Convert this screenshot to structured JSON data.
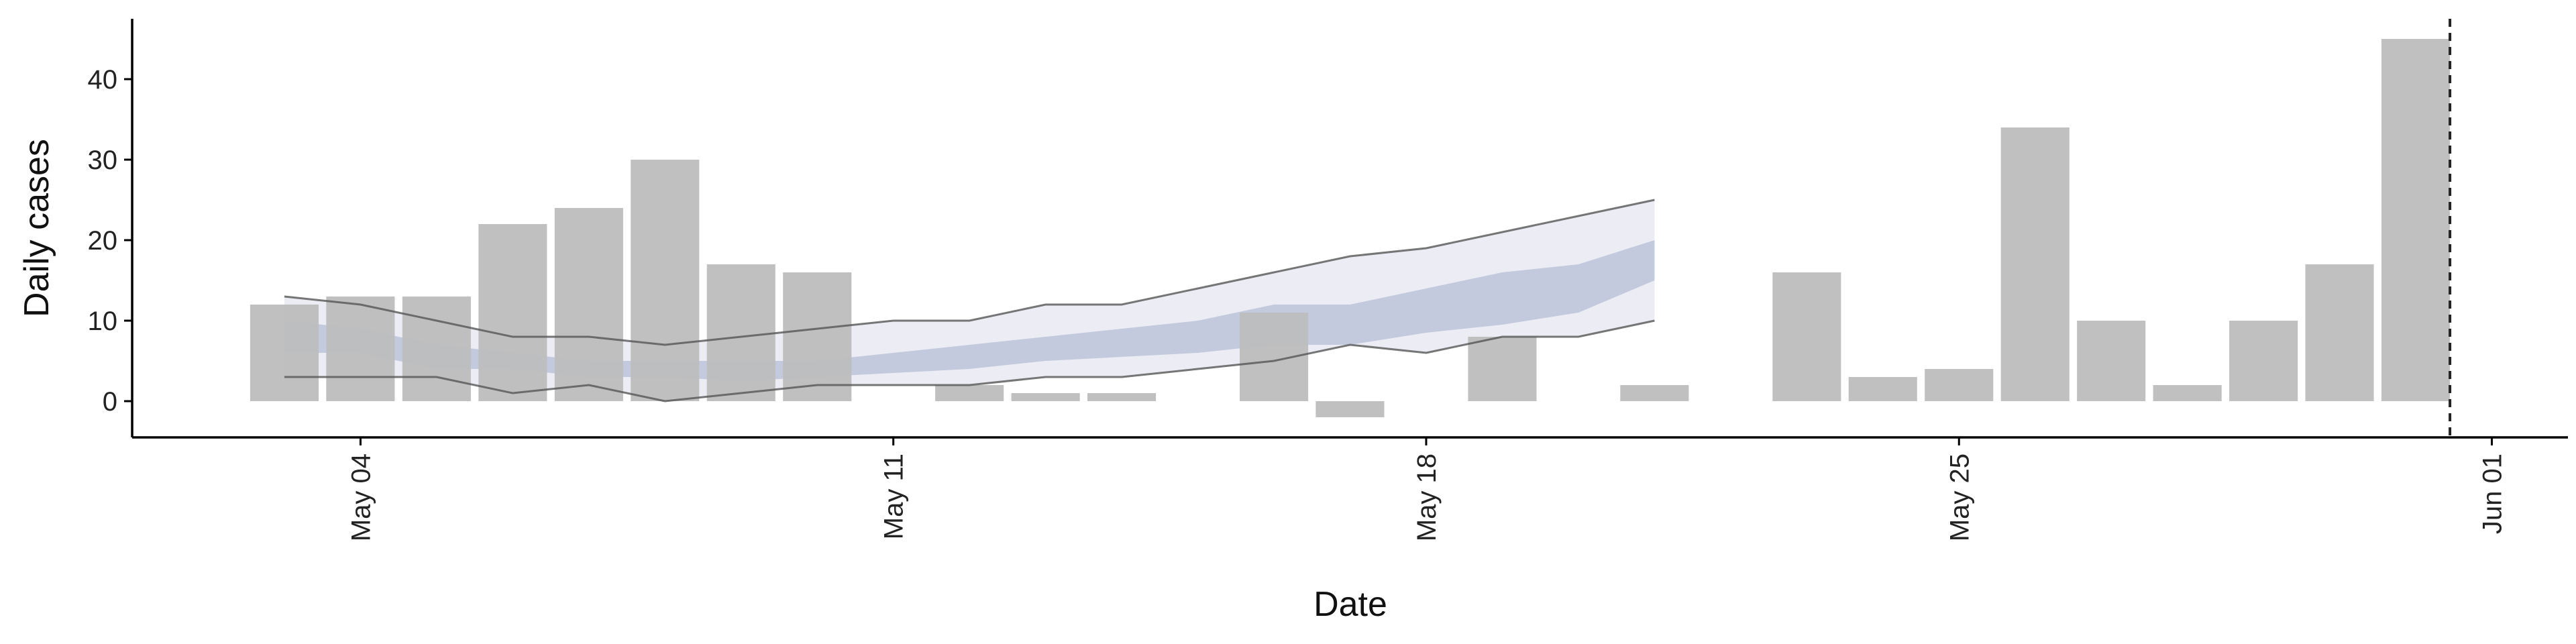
{
  "chart_data": {
    "type": "bar",
    "title": "",
    "xlabel": "Date",
    "ylabel": "Daily cases",
    "ylim": [
      -4.5,
      47.5
    ],
    "xlim": [
      "2021-05-01",
      "2021-06-02"
    ],
    "x_ticks": [
      {
        "date": "2021-05-04",
        "label": "May 04"
      },
      {
        "date": "2021-05-11",
        "label": "May 11"
      },
      {
        "date": "2021-05-18",
        "label": "May 18"
      },
      {
        "date": "2021-05-25",
        "label": "May 25"
      },
      {
        "date": "2021-06-01",
        "label": "Jun 01"
      }
    ],
    "y_ticks": [
      0,
      10,
      20,
      30,
      40
    ],
    "grid": false,
    "legend": "none",
    "bars": {
      "name": "Daily cases",
      "color": "#bdbdbd",
      "points": [
        {
          "date": "2021-05-03",
          "value": 12
        },
        {
          "date": "2021-05-04",
          "value": 13
        },
        {
          "date": "2021-05-05",
          "value": 13
        },
        {
          "date": "2021-05-06",
          "value": 22
        },
        {
          "date": "2021-05-07",
          "value": 24
        },
        {
          "date": "2021-05-08",
          "value": 30
        },
        {
          "date": "2021-05-09",
          "value": 17
        },
        {
          "date": "2021-05-10",
          "value": 16
        },
        {
          "date": "2021-05-12",
          "value": 2
        },
        {
          "date": "2021-05-13",
          "value": 1
        },
        {
          "date": "2021-05-14",
          "value": 1
        },
        {
          "date": "2021-05-16",
          "value": 11
        },
        {
          "date": "2021-05-17",
          "value": -2
        },
        {
          "date": "2021-05-19",
          "value": 8
        },
        {
          "date": "2021-05-21",
          "value": 2
        },
        {
          "date": "2021-05-23",
          "value": 16
        },
        {
          "date": "2021-05-24",
          "value": 3
        },
        {
          "date": "2021-05-25",
          "value": 4
        },
        {
          "date": "2021-05-26",
          "value": 34
        },
        {
          "date": "2021-05-27",
          "value": 10
        },
        {
          "date": "2021-05-28",
          "value": 2
        },
        {
          "date": "2021-05-29",
          "value": 10
        },
        {
          "date": "2021-05-30",
          "value": 17
        },
        {
          "date": "2021-05-31",
          "value": 45
        }
      ]
    },
    "bands": {
      "dates": [
        "2021-05-03",
        "2021-05-04",
        "2021-05-05",
        "2021-05-06",
        "2021-05-07",
        "2021-05-08",
        "2021-05-09",
        "2021-05-10",
        "2021-05-11",
        "2021-05-12",
        "2021-05-13",
        "2021-05-14",
        "2021-05-15",
        "2021-05-16",
        "2021-05-17",
        "2021-05-18",
        "2021-05-19",
        "2021-05-20",
        "2021-05-21"
      ],
      "outer": {
        "color": "#dfe1ec",
        "lower": [
          3,
          3,
          3,
          1,
          2,
          0,
          1,
          2,
          2,
          2,
          3,
          3,
          4,
          5,
          7,
          6,
          8,
          8,
          10
        ],
        "upper": [
          13,
          12,
          10,
          8,
          8,
          7,
          8,
          9,
          10,
          10,
          12,
          12,
          14,
          16,
          18,
          19,
          21,
          23,
          25
        ]
      },
      "inner": {
        "color": "#b4bbd3",
        "lower": [
          6,
          6,
          4,
          4,
          3,
          3,
          2.5,
          3,
          3.5,
          4,
          5,
          5.5,
          6,
          7,
          7,
          8.5,
          9.5,
          11,
          15
        ],
        "upper": [
          10,
          9,
          7,
          6,
          5,
          5,
          5,
          5,
          6,
          7,
          8,
          9,
          10,
          12,
          12,
          14,
          16,
          17,
          20
        ]
      },
      "upper_line": [
        13,
        12,
        10,
        8,
        8,
        7,
        8,
        9,
        10,
        10,
        12,
        12,
        14,
        16,
        18,
        19,
        21,
        23,
        25
      ],
      "lower_line": [
        3,
        3,
        3,
        1,
        2,
        0,
        1,
        2,
        2,
        2,
        3,
        3,
        4,
        5,
        7,
        6,
        8,
        8,
        10
      ],
      "line_color": "#555555"
    },
    "annotations": [
      {
        "type": "vline",
        "date": "2021-05-31.45",
        "style": "dashed",
        "color": "#222222"
      }
    ]
  }
}
